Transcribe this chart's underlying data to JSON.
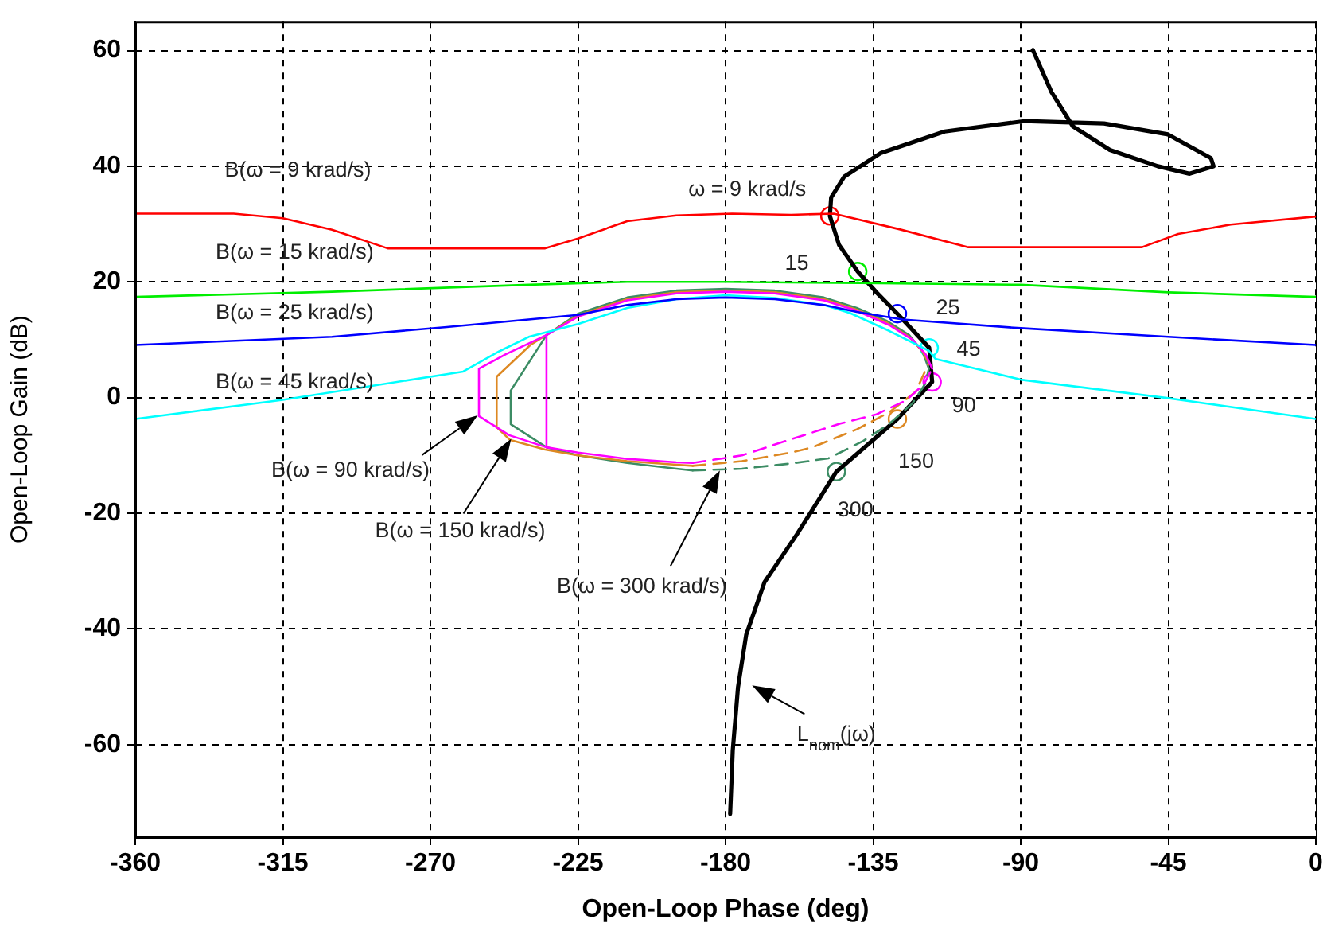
{
  "chart_data": {
    "type": "line",
    "xlabel": "Open-Loop Phase (deg)",
    "ylabel": "Open-Loop Gain (dB)",
    "xlim": [
      -360,
      0
    ],
    "xticks": [
      -360,
      -315,
      -270,
      -225,
      -180,
      -135,
      -90,
      -45,
      0
    ],
    "ylim": [
      -76,
      65
    ],
    "yticks": [
      -60,
      -40,
      -20,
      0,
      20,
      40,
      60
    ],
    "grid": true,
    "legend": false,
    "series": [
      {
        "color": "#ff0000",
        "x": [
          -360,
          -330,
          -315,
          -300,
          -283,
          -235,
          -225,
          -210,
          -195,
          -178,
          -160,
          -147,
          -127,
          -106,
          -53,
          -42,
          -26,
          0
        ],
        "values": [
          31.8,
          31.8,
          31,
          29,
          25.8,
          25.8,
          27.5,
          30.5,
          31.5,
          31.8,
          31.6,
          31.8,
          29.1,
          26,
          26,
          28.3,
          29.9,
          31.3
        ]
      },
      {
        "color": "#00ee00",
        "x": [
          -360,
          -300,
          -240,
          -210,
          -180,
          -139,
          -90,
          -45,
          0
        ],
        "values": [
          17.4,
          18.3,
          19.5,
          20,
          20,
          19.8,
          19.5,
          18.2,
          17.4
        ]
      },
      {
        "color": "#0000ff",
        "x": [
          -360,
          -300,
          -265,
          -225,
          -210,
          -195,
          -180,
          -165,
          -150,
          -140,
          -126,
          -90,
          -45,
          0
        ],
        "values": [
          9.1,
          10.5,
          12.2,
          14.3,
          16,
          17,
          17.3,
          17,
          16,
          14.8,
          13.5,
          12,
          10.5,
          9.1
        ]
      },
      {
        "color": "#00ffff",
        "x": [
          -360,
          -315,
          -260,
          -249,
          -240,
          -225,
          -210,
          -195,
          -180,
          -165,
          -150,
          -142,
          -130,
          -118,
          -116,
          -90,
          -45,
          0
        ],
        "values": [
          -3.7,
          -0.4,
          4.5,
          8,
          10.5,
          12.7,
          15.5,
          17,
          17.7,
          17.2,
          16,
          14.6,
          11.5,
          8.1,
          6.7,
          3.1,
          -0.1,
          -3.7
        ]
      },
      {
        "color": "#ff00ff",
        "x": [
          -117,
          -119,
          -123,
          -130,
          -140,
          -150,
          -165,
          -180,
          -195,
          -210,
          -225,
          -234.6,
          -234.6,
          -225,
          -210,
          -195,
          -190
        ],
        "values": [
          5,
          7.5,
          10,
          12.5,
          15,
          16.8,
          18,
          18.3,
          18,
          16.8,
          14,
          10.8,
          -8.6,
          -9.5,
          -10.6,
          -11.2,
          -11.3
        ]
      },
      {
        "color": "#ff00ff",
        "x": [
          -234.6,
          -247,
          -255.2,
          -255.2,
          -246,
          -234.6
        ],
        "values": [
          10.8,
          7.5,
          5,
          -3.2,
          -6.5,
          -8.6
        ]
      },
      {
        "color": "#ff00ff",
        "line_style": "dashed",
        "x": [
          -190,
          -175,
          -160,
          -145,
          -134,
          -125,
          -119.5,
          -117
        ],
        "values": [
          -11.3,
          -10,
          -7.2,
          -4.5,
          -2.9,
          -0.5,
          2.3,
          5
        ]
      },
      {
        "color": "#dd8822",
        "x": [
          -118,
          -120,
          -124,
          -131,
          -140,
          -150,
          -165,
          -180,
          -195,
          -210,
          -225,
          -239.5,
          -249.8,
          -249.8,
          -245.8,
          -235,
          -225,
          -210,
          -195,
          -190
        ],
        "values": [
          6,
          8,
          10.5,
          13,
          15.2,
          17,
          18.2,
          18.5,
          18.2,
          17,
          14.2,
          9.1,
          3.6,
          -5.1,
          -7.3,
          -9,
          -10,
          -11,
          -11.6,
          -11.8
        ]
      },
      {
        "color": "#dd8822",
        "line_style": "dashed",
        "x": [
          -190,
          -175,
          -160,
          -153.5,
          -140,
          -130,
          -122,
          -118
        ],
        "values": [
          -11.8,
          -11,
          -9.5,
          -8.6,
          -5.5,
          -2.5,
          1,
          6
        ]
      },
      {
        "color": "#3c8c64",
        "x": [
          -118,
          -120,
          -124,
          -131,
          -140,
          -150,
          -165,
          -180,
          -195,
          -210,
          -225,
          -234.6,
          -245.5,
          -245.5,
          -234.6,
          -225,
          -210,
          -195,
          -190
        ],
        "values": [
          5,
          8,
          10.8,
          13.3,
          15.5,
          17.3,
          18.5,
          18.8,
          18.5,
          17.3,
          14.5,
          10.8,
          1.2,
          -4.6,
          -8.6,
          -10,
          -11.3,
          -12.3,
          -12.6
        ]
      },
      {
        "color": "#3c8c64",
        "line_style": "dashed",
        "x": [
          -190,
          -175,
          -160,
          -148.6,
          -138,
          -130,
          -123,
          -119,
          -118
        ],
        "values": [
          -12.6,
          -12.3,
          -11.4,
          -10.5,
          -7.5,
          -4.5,
          -1,
          2.5,
          5
        ]
      },
      {
        "color": "#000000",
        "x": [
          -86.3,
          -80.6,
          -74.1,
          -62.8,
          -48.2,
          -38.5,
          -31.2,
          -32,
          -45.1,
          -64.6,
          -88.9,
          -113.2,
          -132.6,
          -143.8,
          -147.8,
          -148.2,
          -145.4,
          -139.7,
          -134,
          -127.6,
          -117.9,
          -117,
          -127.6,
          -146.2,
          -158.3,
          -168.1,
          -173.7,
          -176.2,
          -177.8,
          -178.6
        ],
        "values": [
          60.1,
          52.8,
          46.9,
          42.8,
          40,
          38.7,
          40,
          41.4,
          45.5,
          47.4,
          47.8,
          46,
          42.3,
          38.2,
          34.6,
          31.4,
          26.4,
          21.8,
          18.2,
          14.5,
          8.6,
          2.7,
          -3.7,
          -12.8,
          -23.7,
          -31.9,
          -41,
          -50.1,
          -61,
          -72
        ]
      },
      {
        "type": "scatter",
        "marker": "circle",
        "colors": [
          "#ff0000",
          "#00ee00",
          "#0000ff",
          "#00ffff",
          "#ff00ff",
          "#dd8822",
          "#3c8c64"
        ],
        "x": [
          -148.2,
          -139.7,
          -127.6,
          -117.9,
          -117,
          -127.6,
          -146.2
        ],
        "values": [
          31.4,
          21.8,
          14.5,
          8.6,
          2.7,
          -3.7,
          -12.8
        ]
      }
    ],
    "annotations": [
      "B(ω = 9 krad/s)",
      "B(ω = 15 krad/s)",
      "B(ω = 25 krad/s)",
      "B(ω = 45 krad/s)",
      "B(ω = 90 krad/s)",
      "B(ω = 150 krad/s)",
      "B(ω = 300 krad/s)",
      "ω = 9 krad/s",
      "15",
      "25",
      "45",
      "90",
      "150",
      "300",
      "L$_{nom}$(jω)"
    ]
  }
}
